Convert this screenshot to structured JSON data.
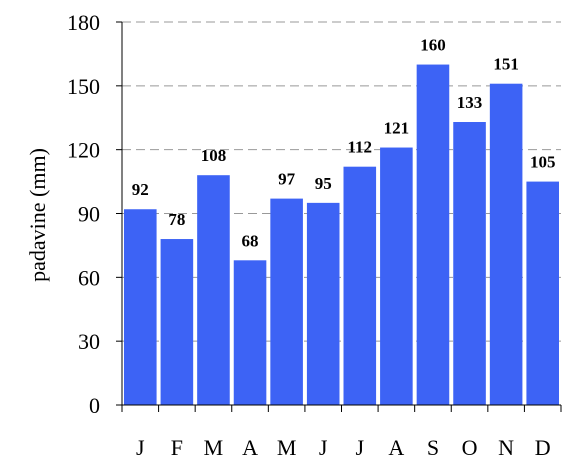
{
  "chart_data": {
    "type": "bar",
    "categories": [
      "J",
      "F",
      "M",
      "A",
      "M",
      "J",
      "J",
      "A",
      "S",
      "O",
      "N",
      "D"
    ],
    "values": [
      92,
      78,
      108,
      68,
      97,
      95,
      112,
      121,
      160,
      133,
      151,
      105
    ],
    "data_labels": [
      "92",
      "78",
      "108",
      "68",
      "97",
      "95",
      "112",
      "121",
      "160",
      "133",
      "151",
      "105"
    ],
    "title": "",
    "xlabel": "",
    "ylabel": "padavine (mm)",
    "ylim": [
      0,
      180
    ],
    "yticks": [
      0,
      30,
      60,
      90,
      120,
      150,
      180
    ],
    "ytick_labels": [
      "0",
      "30",
      "60",
      "90",
      "120",
      "150",
      "180"
    ],
    "grid": "horizontal dashed",
    "colors": {
      "bar": "#3d63f5",
      "grid": "#999999",
      "axis": "#000000"
    }
  }
}
